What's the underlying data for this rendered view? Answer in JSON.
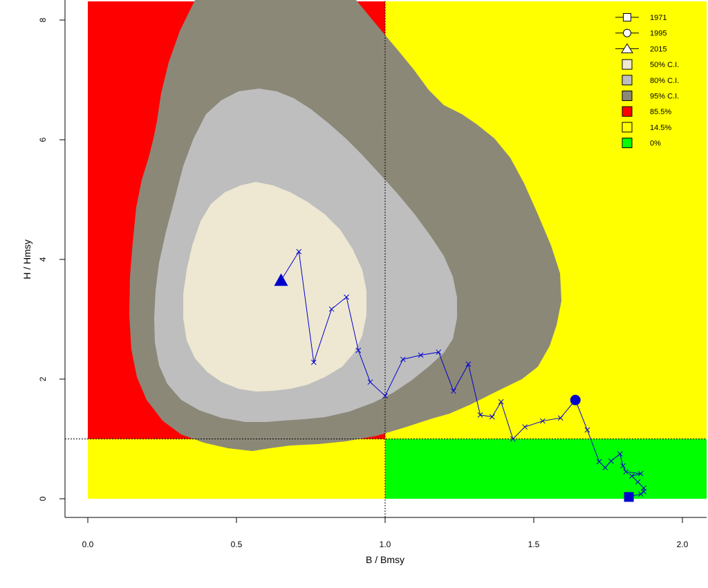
{
  "chart_data": {
    "type": "scatter",
    "xlabel": "B / Bmsy",
    "ylabel": "H / Hmsy",
    "xlim": [
      0.0,
      2.08
    ],
    "ylim": [
      0,
      8.3
    ],
    "x_ticks": [
      "0.0",
      "0.5",
      "1.0",
      "1.5",
      "2.0"
    ],
    "y_ticks": [
      "0",
      "2",
      "4",
      "6",
      "8"
    ],
    "reference_lines": {
      "x": 1.0,
      "y": 1.0
    },
    "quadrants": {
      "top_left": {
        "color": "#ff0000"
      },
      "top_right": {
        "color": "#ffff00"
      },
      "bottom_left": {
        "color": "#ffff00"
      },
      "bottom_right": {
        "color": "#00ff00"
      }
    },
    "confidence_regions": [
      {
        "level": "95% C.I.",
        "color": "#8b8878"
      },
      {
        "level": "80% C.I.",
        "color": "#bebebe"
      },
      {
        "level": "50% C.I.",
        "color": "#eee8d2"
      }
    ],
    "trajectory": {
      "color": "#0000cd",
      "points": [
        [
          1.82,
          0.03
        ],
        [
          1.86,
          0.08
        ],
        [
          1.87,
          0.12
        ],
        [
          1.87,
          0.18
        ],
        [
          1.85,
          0.28
        ],
        [
          1.83,
          0.38
        ],
        [
          1.86,
          0.42
        ],
        [
          1.81,
          0.45
        ],
        [
          1.8,
          0.55
        ],
        [
          1.79,
          0.75
        ],
        [
          1.76,
          0.63
        ],
        [
          1.74,
          0.52
        ],
        [
          1.72,
          0.62
        ],
        [
          1.68,
          1.15
        ],
        [
          1.64,
          1.65
        ],
        [
          1.59,
          1.35
        ],
        [
          1.53,
          1.3
        ],
        [
          1.47,
          1.2
        ],
        [
          1.43,
          1.0
        ],
        [
          1.39,
          1.62
        ],
        [
          1.36,
          1.37
        ],
        [
          1.32,
          1.4
        ],
        [
          1.28,
          2.25
        ],
        [
          1.23,
          1.8
        ],
        [
          1.18,
          2.45
        ],
        [
          1.12,
          2.4
        ],
        [
          1.06,
          2.33
        ],
        [
          1.0,
          1.72
        ],
        [
          0.95,
          1.95
        ],
        [
          0.91,
          2.48
        ],
        [
          0.87,
          3.37
        ],
        [
          0.82,
          3.17
        ],
        [
          0.76,
          2.28
        ],
        [
          0.71,
          4.13
        ],
        [
          0.65,
          3.65
        ]
      ]
    },
    "markers": [
      {
        "year": "1971",
        "shape": "square",
        "x": 1.82,
        "y": 0.03
      },
      {
        "year": "1995",
        "shape": "circle",
        "x": 1.64,
        "y": 1.65
      },
      {
        "year": "2015",
        "shape": "triangle",
        "x": 0.65,
        "y": 3.65
      }
    ],
    "legend": {
      "position": "top-right",
      "entries": [
        {
          "label": "1971",
          "kind": "square"
        },
        {
          "label": "1995",
          "kind": "circle"
        },
        {
          "label": "2015",
          "kind": "triangle"
        },
        {
          "label": "50% C.I.",
          "kind": "box",
          "color": "#eee8d2"
        },
        {
          "label": "80% C.I.",
          "kind": "box",
          "color": "#bebebe"
        },
        {
          "label": "95% C.I.",
          "kind": "box",
          "color": "#8b8878"
        },
        {
          "label": "85.5%",
          "kind": "box",
          "color": "#ff0000"
        },
        {
          "label": "14.5%",
          "kind": "box",
          "color": "#ffff00"
        },
        {
          "label": "0%",
          "kind": "box",
          "color": "#00ff00"
        }
      ]
    }
  }
}
